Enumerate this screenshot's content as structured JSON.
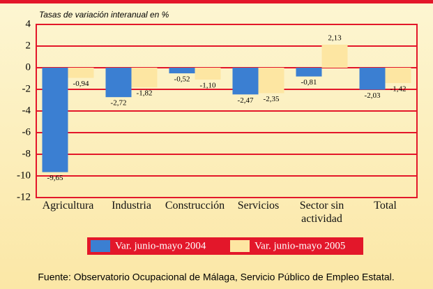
{
  "chart_data": {
    "type": "bar",
    "title": "Tasas de variación interanual en %",
    "categories": [
      "Agricultura",
      "Industria",
      "Construcción",
      "Servicios",
      "Sector sin actividad",
      "Total"
    ],
    "series": [
      {
        "name": "Var. junio-mayo 2004",
        "color": "#3b7fd2",
        "values": [
          -9.65,
          -2.72,
          -0.52,
          -2.47,
          -0.81,
          -2.03
        ],
        "value_labels": [
          "-9,65",
          "-2,72",
          "-0,52",
          "-2,47",
          "-0,81",
          "-2,03"
        ]
      },
      {
        "name": "Var. junio-mayo 2005",
        "color": "#fde6a2",
        "values": [
          -0.94,
          -1.82,
          -1.1,
          -2.35,
          2.13,
          -1.42
        ],
        "value_labels": [
          "-0,94",
          "-1,82",
          "-1,10",
          "-2,35",
          "2,13",
          "-1,42"
        ]
      }
    ],
    "ylim": [
      -12,
      4
    ],
    "yticks": [
      -12,
      -10,
      -8,
      -6,
      -4,
      -2,
      0,
      2,
      4
    ],
    "grid": true,
    "source": "Fuente: Observatorio Ocupacional de Málaga, Servicio Público de Empleo Estatal."
  }
}
